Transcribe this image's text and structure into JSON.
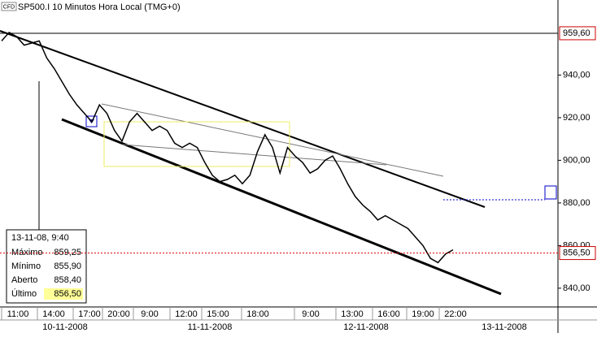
{
  "chart_data": {
    "type": "line",
    "title": "SP500.I 10 Minutos Hora Local (TMG+0)",
    "badge": "CFD",
    "series": [
      {
        "name": "SP500.I",
        "color": "#000000",
        "values": [
          956,
          960,
          958,
          954,
          955,
          956,
          948,
          943,
          937,
          931,
          926,
          922,
          918,
          926,
          922,
          914,
          909,
          918,
          922,
          918,
          914,
          916,
          914,
          908,
          906,
          908,
          906,
          899,
          893,
          890,
          891,
          893,
          889,
          893,
          904,
          912,
          906,
          894,
          906,
          902,
          899,
          894,
          896,
          900,
          902,
          896,
          889,
          883,
          879,
          876,
          872,
          874,
          872,
          870,
          868,
          864,
          860,
          854,
          852,
          856,
          858
        ]
      }
    ],
    "ylim": [
      831.2,
      975.2
    ],
    "yticks": [
      {
        "value": 840,
        "label": "840,00"
      },
      {
        "value": 860,
        "label": "860,00"
      },
      {
        "value": 880,
        "label": "880,00"
      },
      {
        "value": 900,
        "label": "900,00"
      },
      {
        "value": 920,
        "label": "920,00"
      },
      {
        "value": 940,
        "label": "940,00"
      }
    ],
    "price_labels": [
      {
        "value": 959.6,
        "label": "959,60"
      },
      {
        "value": 856.5,
        "label": "856,50"
      }
    ],
    "time_labels": [
      "11:00",
      "14:00",
      "17:00",
      "20:00",
      "9:00",
      "12:00",
      "15:00",
      "18:00",
      "9:00",
      "13:00",
      "16:00",
      "19:00",
      "22:00"
    ],
    "date_labels": [
      "10-11-2008",
      "11-11-2008",
      "12-11-2008",
      "13-11-2008"
    ],
    "info_box": {
      "date": "13-11-08, 9:40",
      "rows": [
        [
          "Máximo",
          "859,25"
        ],
        [
          "Mínimo",
          "855,90"
        ],
        [
          "Aberto",
          "858,40"
        ],
        [
          "Último",
          "856,50"
        ]
      ]
    }
  }
}
